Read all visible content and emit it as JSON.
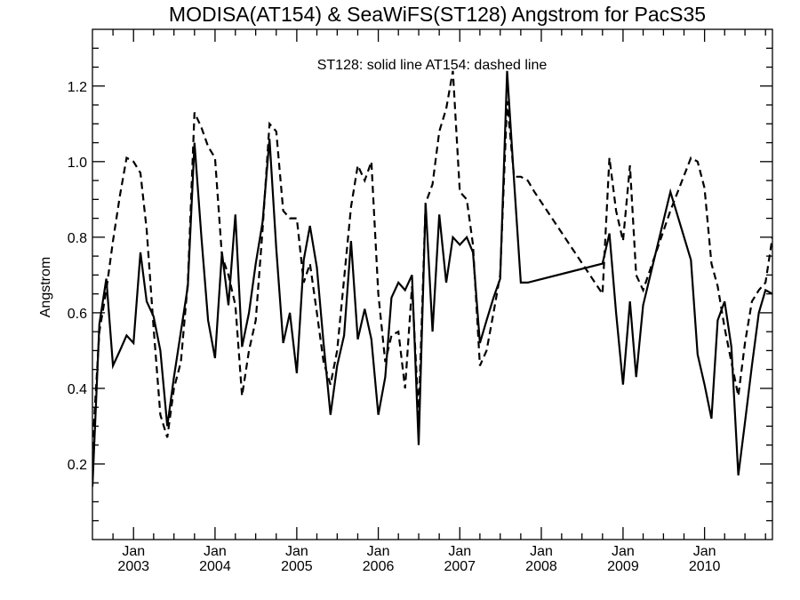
{
  "chart_data": {
    "type": "line",
    "title": "MODISA(AT154) & SeaWiFS(ST128)  Angstrom for PacS35",
    "annotation": "ST128: solid line   AT154: dashed line",
    "xlabel": "",
    "ylabel": "Angstrom",
    "xlim": [
      "2002-07-01",
      "2010-11-01"
    ],
    "ylim": [
      0.0,
      1.35
    ],
    "grid": false,
    "x_ticks": [
      {
        "date": "2003-01-01",
        "month": "Jan",
        "year": "2003"
      },
      {
        "date": "2004-01-01",
        "month": "Jan",
        "year": "2004"
      },
      {
        "date": "2005-01-01",
        "month": "Jan",
        "year": "2005"
      },
      {
        "date": "2006-01-01",
        "month": "Jan",
        "year": "2006"
      },
      {
        "date": "2007-01-01",
        "month": "Jan",
        "year": "2007"
      },
      {
        "date": "2008-01-01",
        "month": "Jan",
        "year": "2008"
      },
      {
        "date": "2009-01-01",
        "month": "Jan",
        "year": "2009"
      },
      {
        "date": "2010-01-01",
        "month": "Jan",
        "year": "2010"
      }
    ],
    "y_ticks": [
      "0.2",
      "0.4",
      "0.6",
      "0.8",
      "1.0",
      "1.2"
    ],
    "series": [
      {
        "style": "solid",
        "x": [
          "2002-07",
          "2002-08",
          "2002-09",
          "2002-10",
          "2002-11",
          "2002-12",
          "2003-01",
          "2003-02",
          "2003-03",
          "2003-04",
          "2003-05",
          "2003-06",
          "2003-07",
          "2003-08",
          "2003-09",
          "2003-10",
          "2003-11",
          "2003-12",
          "2004-01",
          "2004-02",
          "2004-03",
          "2004-04",
          "2004-05",
          "2004-06",
          "2004-07",
          "2004-08",
          "2004-09",
          "2004-10",
          "2004-11",
          "2004-12",
          "2005-01",
          "2005-02",
          "2005-03",
          "2005-04",
          "2005-05",
          "2005-06",
          "2005-07",
          "2005-08",
          "2005-09",
          "2005-10",
          "2005-11",
          "2005-12",
          "2006-01",
          "2006-02",
          "2006-03",
          "2006-04",
          "2006-05",
          "2006-06",
          "2006-07",
          "2006-08",
          "2006-09",
          "2006-10",
          "2006-11",
          "2006-12",
          "2007-01",
          "2007-02",
          "2007-03",
          "2007-04",
          "2007-05",
          "2007-06",
          "2007-07",
          "2007-08",
          "2007-09",
          "2007-10",
          "2007-11",
          "2008-10",
          "2008-11",
          "2008-12",
          "2009-01",
          "2009-02",
          "2009-03",
          "2009-04",
          "2009-08",
          "2009-11",
          "2009-12",
          "2010-01",
          "2010-02",
          "2010-03",
          "2010-04",
          "2010-05",
          "2010-06",
          "2010-07",
          "2010-08",
          "2010-09",
          "2010-10",
          "2010-11"
        ],
        "values": [
          0.14,
          0.57,
          0.69,
          0.46,
          0.5,
          0.54,
          0.52,
          0.76,
          0.63,
          0.59,
          0.5,
          0.3,
          0.43,
          0.55,
          0.67,
          1.05,
          0.8,
          0.58,
          0.48,
          0.76,
          0.62,
          0.86,
          0.51,
          0.6,
          0.73,
          0.84,
          1.06,
          0.77,
          0.52,
          0.6,
          0.44,
          0.74,
          0.83,
          0.72,
          0.52,
          0.33,
          0.46,
          0.54,
          0.79,
          0.53,
          0.61,
          0.53,
          0.33,
          0.43,
          0.64,
          0.68,
          0.66,
          0.7,
          0.25,
          0.89,
          0.55,
          0.86,
          0.68,
          0.8,
          0.78,
          0.8,
          0.76,
          0.52,
          0.58,
          0.64,
          0.69,
          1.24,
          0.95,
          0.68,
          0.68,
          0.73,
          0.81,
          0.6,
          0.41,
          0.63,
          0.43,
          0.62,
          0.92,
          0.74,
          0.49,
          0.41,
          0.32,
          0.58,
          0.63,
          0.51,
          0.17,
          0.31,
          0.46,
          0.6,
          0.66,
          0.65
        ]
      },
      {
        "style": "dashed",
        "x": [
          "2002-07",
          "2002-08",
          "2002-09",
          "2002-10",
          "2002-11",
          "2002-12",
          "2003-01",
          "2003-02",
          "2003-03",
          "2003-04",
          "2003-05",
          "2003-06",
          "2003-07",
          "2003-08",
          "2003-09",
          "2003-10",
          "2003-11",
          "2003-12",
          "2004-01",
          "2004-02",
          "2004-03",
          "2004-04",
          "2004-05",
          "2004-06",
          "2004-07",
          "2004-08",
          "2004-09",
          "2004-10",
          "2004-11",
          "2004-12",
          "2005-01",
          "2005-02",
          "2005-03",
          "2005-04",
          "2005-05",
          "2005-06",
          "2005-07",
          "2005-08",
          "2005-09",
          "2005-10",
          "2005-11",
          "2005-12",
          "2006-01",
          "2006-02",
          "2006-03",
          "2006-04",
          "2006-05",
          "2006-06",
          "2006-07",
          "2006-08",
          "2006-09",
          "2006-10",
          "2006-11",
          "2006-12",
          "2007-01",
          "2007-02",
          "2007-03",
          "2007-04",
          "2007-05",
          "2007-06",
          "2007-07",
          "2007-08",
          "2007-09",
          "2007-10",
          "2007-11",
          "2007-12",
          "2008-10",
          "2008-11",
          "2008-12",
          "2009-01",
          "2009-02",
          "2009-03",
          "2009-04",
          "2009-08",
          "2009-11",
          "2009-12",
          "2010-01",
          "2010-02",
          "2010-03",
          "2010-04",
          "2010-05",
          "2010-06",
          "2010-07",
          "2010-08",
          "2010-09",
          "2010-10",
          "2010-11"
        ],
        "values": [
          0.24,
          0.55,
          0.66,
          0.79,
          0.91,
          1.01,
          1.0,
          0.97,
          0.82,
          0.56,
          0.33,
          0.27,
          0.4,
          0.47,
          0.68,
          1.13,
          1.09,
          1.04,
          1.01,
          0.75,
          0.7,
          0.62,
          0.38,
          0.5,
          0.58,
          0.82,
          1.1,
          1.08,
          0.87,
          0.85,
          0.85,
          0.68,
          0.73,
          0.6,
          0.47,
          0.41,
          0.5,
          0.69,
          0.88,
          0.99,
          0.95,
          1.0,
          0.65,
          0.47,
          0.54,
          0.55,
          0.4,
          0.67,
          0.33,
          0.89,
          0.94,
          1.08,
          1.14,
          1.24,
          0.92,
          0.9,
          0.78,
          0.46,
          0.5,
          0.6,
          0.7,
          1.16,
          0.96,
          0.96,
          0.95,
          0.92,
          0.65,
          1.01,
          0.87,
          0.79,
          0.99,
          0.7,
          0.66,
          0.87,
          1.01,
          1.0,
          0.93,
          0.73,
          0.67,
          0.56,
          0.47,
          0.38,
          0.52,
          0.63,
          0.66,
          0.68,
          0.8
        ]
      }
    ]
  }
}
